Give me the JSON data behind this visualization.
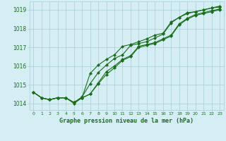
{
  "x": [
    0,
    1,
    2,
    3,
    4,
    5,
    6,
    7,
    8,
    9,
    10,
    11,
    12,
    13,
    14,
    15,
    16,
    17,
    18,
    19,
    20,
    21,
    22,
    23
  ],
  "line1": [
    1014.6,
    1014.3,
    1014.2,
    1014.3,
    1014.3,
    1014.0,
    1014.3,
    1014.5,
    1015.1,
    1015.7,
    1016.0,
    1016.35,
    1016.55,
    1017.05,
    1017.15,
    1017.25,
    1017.45,
    1017.65,
    1018.25,
    1018.55,
    1018.75,
    1018.85,
    1018.95,
    1019.05
  ],
  "line2": [
    1014.6,
    1014.3,
    1014.2,
    1014.3,
    1014.3,
    1014.05,
    1014.35,
    1015.05,
    1015.65,
    1016.05,
    1016.4,
    1016.6,
    1017.1,
    1017.2,
    1017.3,
    1017.5,
    1017.7,
    1018.3,
    1018.6,
    1018.8,
    1018.9,
    1019.0,
    1019.1,
    1019.2
  ],
  "line3": [
    1014.6,
    1014.3,
    1014.2,
    1014.3,
    1014.3,
    1014.05,
    1014.3,
    1015.6,
    1016.05,
    1016.35,
    1016.6,
    1017.05,
    1017.15,
    1017.3,
    1017.45,
    1017.65,
    1017.75,
    1018.35,
    1018.6,
    1018.85,
    1018.9,
    1019.0,
    1019.1,
    1019.15
  ],
  "line4": [
    1014.6,
    1014.3,
    1014.2,
    1014.3,
    1014.3,
    1014.05,
    1014.3,
    1014.5,
    1015.05,
    1015.55,
    1015.9,
    1016.3,
    1016.5,
    1017.0,
    1017.1,
    1017.2,
    1017.4,
    1017.6,
    1018.2,
    1018.5,
    1018.7,
    1018.8,
    1018.9,
    1019.0
  ],
  "line_color": "#1a6e1a",
  "bg_color": "#d4eef4",
  "grid_color": "#aaccd6",
  "text_color": "#1a6e1a",
  "ylabel_ticks": [
    1014,
    1015,
    1016,
    1017,
    1018,
    1019
  ],
  "xlabel": "Graphe pression niveau de la mer (hPa)",
  "ylim": [
    1013.65,
    1019.45
  ],
  "xlim": [
    -0.5,
    23.5
  ],
  "marker": "D",
  "marker_size": 2.2,
  "line_width": 0.8
}
